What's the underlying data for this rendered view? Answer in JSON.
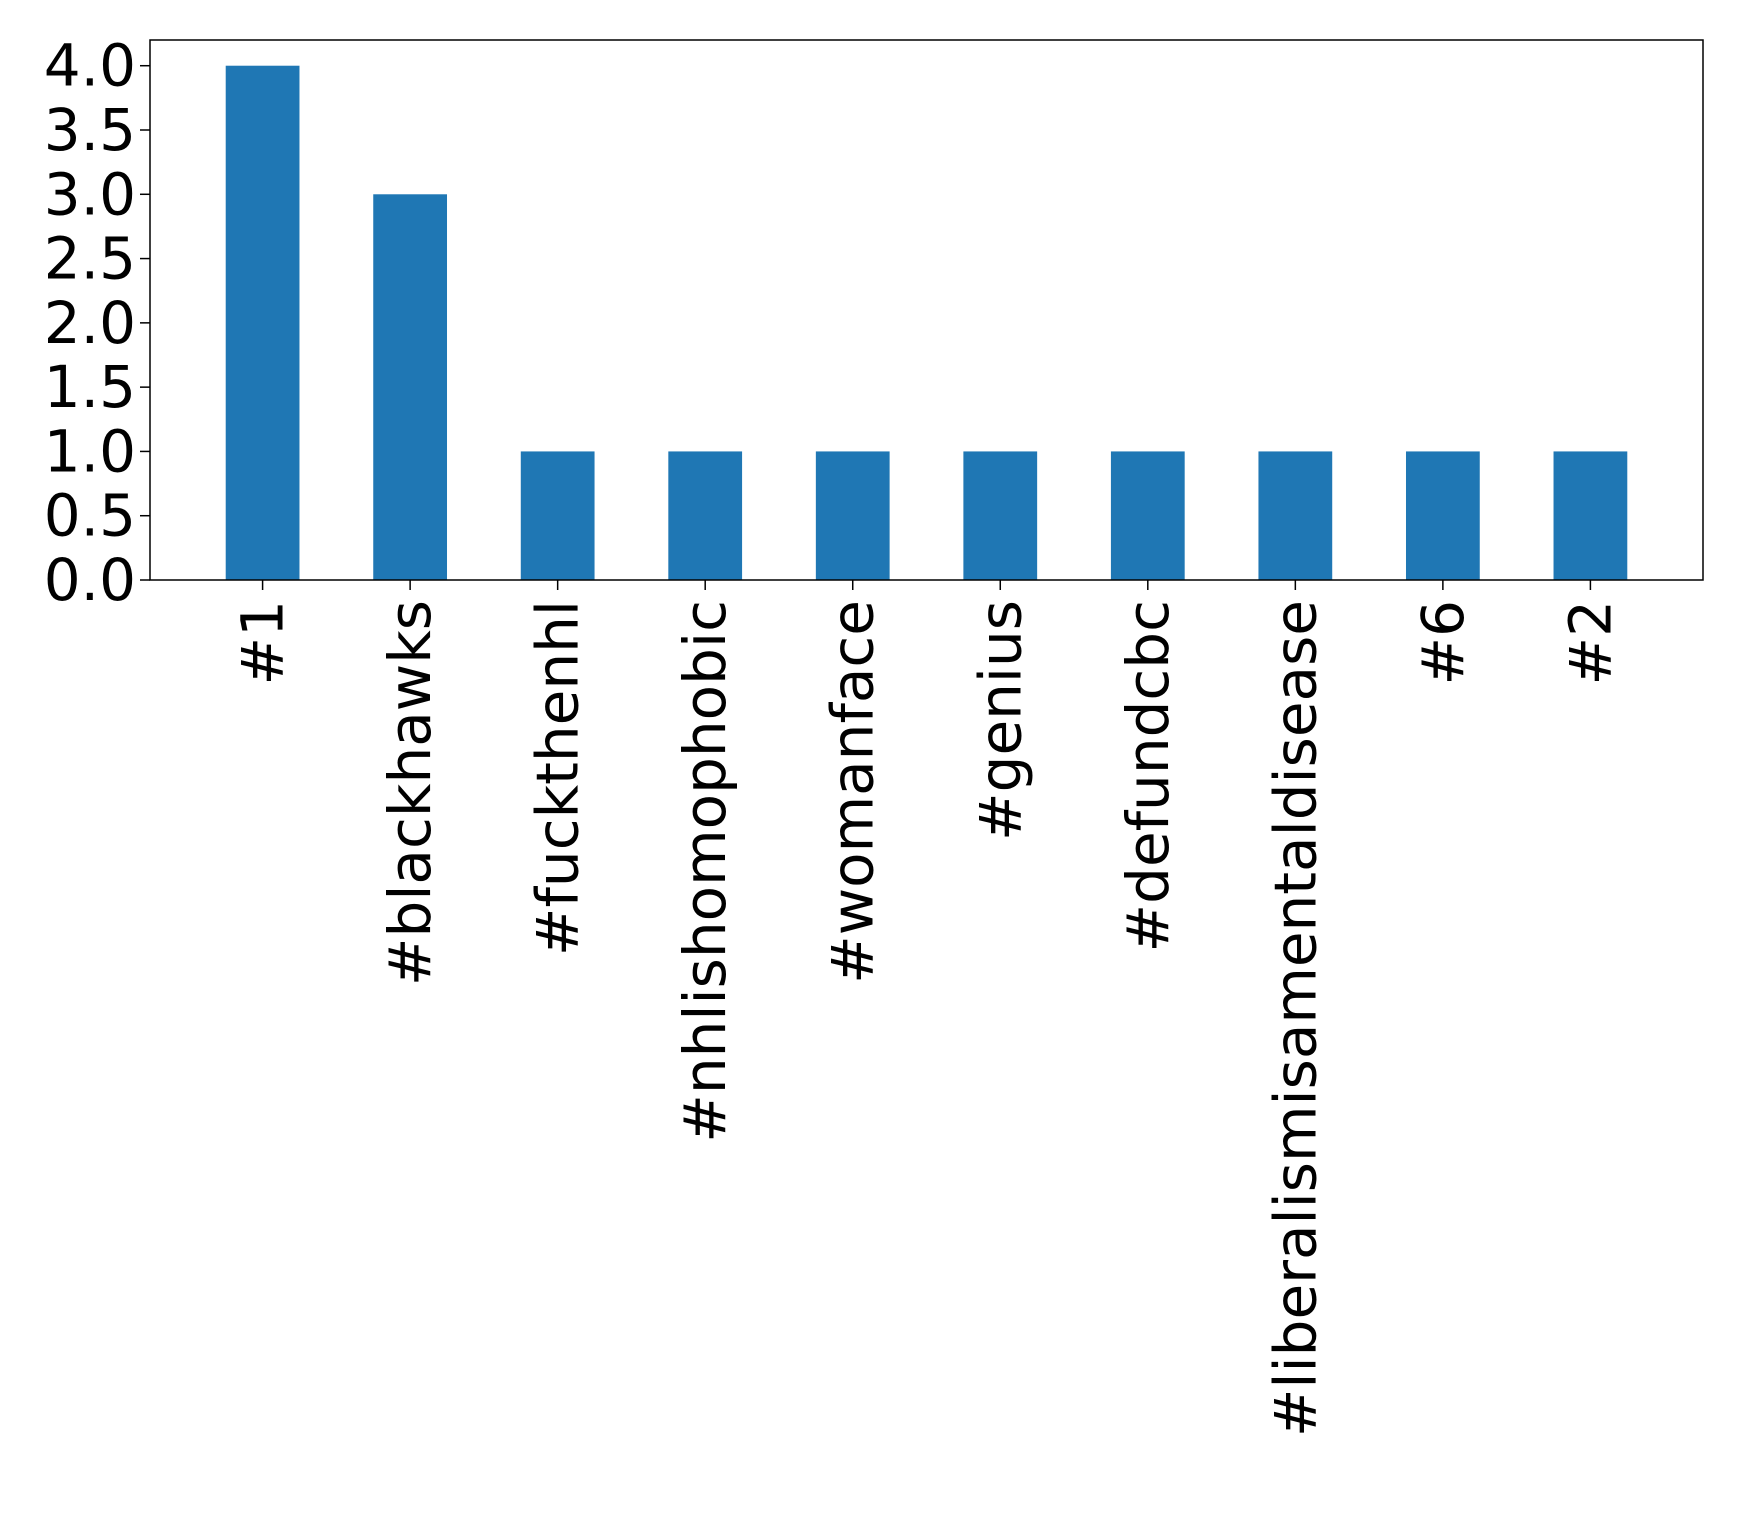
{
  "chart_data": {
    "type": "bar",
    "categories": [
      "#1",
      "#blackhawks",
      "#fuckthenhl",
      "#nhlishomophobic",
      "#womanface",
      "#genius",
      "#defundcbc",
      "#liberalismisamentaldisease",
      "#6",
      "#2"
    ],
    "values": [
      4,
      3,
      1,
      1,
      1,
      1,
      1,
      1,
      1,
      1
    ],
    "yticks": [
      "0.0",
      "0.5",
      "1.0",
      "1.5",
      "2.0",
      "2.5",
      "3.0",
      "3.5",
      "4.0"
    ],
    "ylim": [
      0,
      4.2
    ],
    "grid": false,
    "colors": {
      "bar": "#1f77b4"
    }
  }
}
